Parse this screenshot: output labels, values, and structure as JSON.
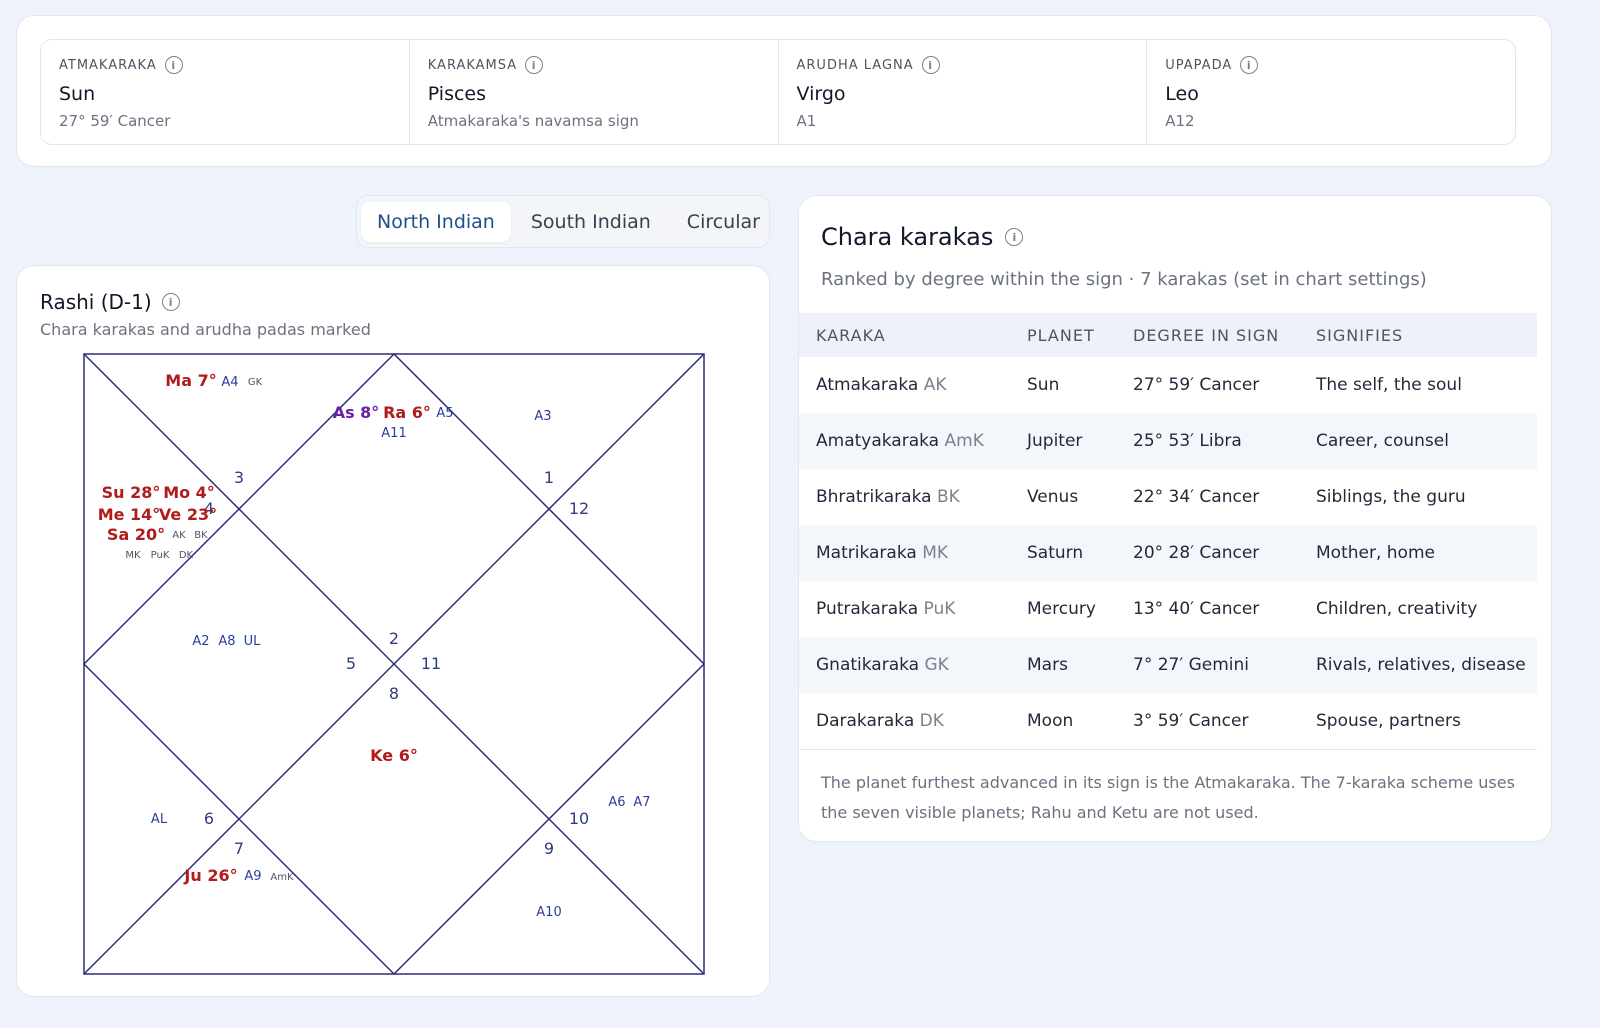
{
  "summary": [
    {
      "label": "ATMAKARAKA",
      "value": "Sun",
      "sub": "27° 59′ Cancer"
    },
    {
      "label": "KARAKAMSA",
      "value": "Pisces",
      "sub": "Atmakaraka's navamsa sign"
    },
    {
      "label": "ARUDHA LAGNA",
      "value": "Virgo",
      "sub": "A1"
    },
    {
      "label": "UPAPADA",
      "value": "Leo",
      "sub": "A12"
    }
  ],
  "tabs": [
    {
      "label": "North Indian",
      "active": true
    },
    {
      "label": "South Indian",
      "active": false
    },
    {
      "label": "Circular",
      "active": false
    }
  ],
  "chart": {
    "title": "Rashi (D-1)",
    "subtitle": "Chara karakas and arudha padas marked",
    "colors": {
      "planet": "#b01c1c",
      "ascendant": "#6a1fa8",
      "pada": "#2c3e9c",
      "lines": "#2e2c7a",
      "small": "#4b5563",
      "number": "#2e3f7c"
    },
    "sign_numbers": [
      "1",
      "12",
      "11",
      "10",
      "9",
      "8",
      "7",
      "6",
      "5",
      "4",
      "3",
      "2"
    ],
    "planets": {
      "ma": "Ma 7°",
      "as": "As 8°",
      "ra": "Ra 6°",
      "su": "Su 28°",
      "mo": "Mo 4°",
      "me": "Me 14°",
      "ve": "Ve 23°",
      "sa": "Sa 20°",
      "ke": "Ke 6°",
      "ju": "Ju 26°"
    },
    "padas": {
      "a4": "A4",
      "a5": "A5",
      "a11": "A11",
      "a3": "A3",
      "a2": "A2",
      "a8": "A8",
      "ul": "UL",
      "al": "AL",
      "a6": "A6",
      "a7": "A7",
      "a9": "A9",
      "a10": "A10"
    },
    "karaka_tags": {
      "gk": "GK",
      "ak": "AK",
      "bk": "BK",
      "mk": "MK",
      "puk": "PuK",
      "dk": "DK",
      "amk": "AmK"
    }
  },
  "karakas": {
    "title": "Chara karakas",
    "subtitle": "Ranked by degree within the sign · 7 karakas (set in chart settings)",
    "headers": [
      "KARAKA",
      "PLANET",
      "DEGREE IN SIGN",
      "SIGNIFIES"
    ],
    "rows": [
      {
        "karaka": "Atmakaraka",
        "abbr": "AK",
        "planet": "Sun",
        "degree": "27° 59′ Cancer",
        "signifies": "The self, the soul"
      },
      {
        "karaka": "Amatyakaraka",
        "abbr": "AmK",
        "planet": "Jupiter",
        "degree": "25° 53′ Libra",
        "signifies": "Career, counsel"
      },
      {
        "karaka": "Bhratrikaraka",
        "abbr": "BK",
        "planet": "Venus",
        "degree": "22° 34′ Cancer",
        "signifies": "Siblings, the guru"
      },
      {
        "karaka": "Matrikaraka",
        "abbr": "MK",
        "planet": "Saturn",
        "degree": "20° 28′ Cancer",
        "signifies": "Mother, home"
      },
      {
        "karaka": "Putrakaraka",
        "abbr": "PuK",
        "planet": "Mercury",
        "degree": "13° 40′ Cancer",
        "signifies": "Children, creativity"
      },
      {
        "karaka": "Gnatikaraka",
        "abbr": "GK",
        "planet": "Mars",
        "degree": "7° 27′ Gemini",
        "signifies": "Rivals, relatives, disease"
      },
      {
        "karaka": "Darakaraka",
        "abbr": "DK",
        "planet": "Moon",
        "degree": "3° 59′ Cancer",
        "signifies": "Spouse, partners"
      }
    ],
    "note": "The planet furthest advanced in its sign is the Atmakaraka. The 7-karaka scheme uses the seven visible planets; Rahu and Ketu are not used."
  }
}
